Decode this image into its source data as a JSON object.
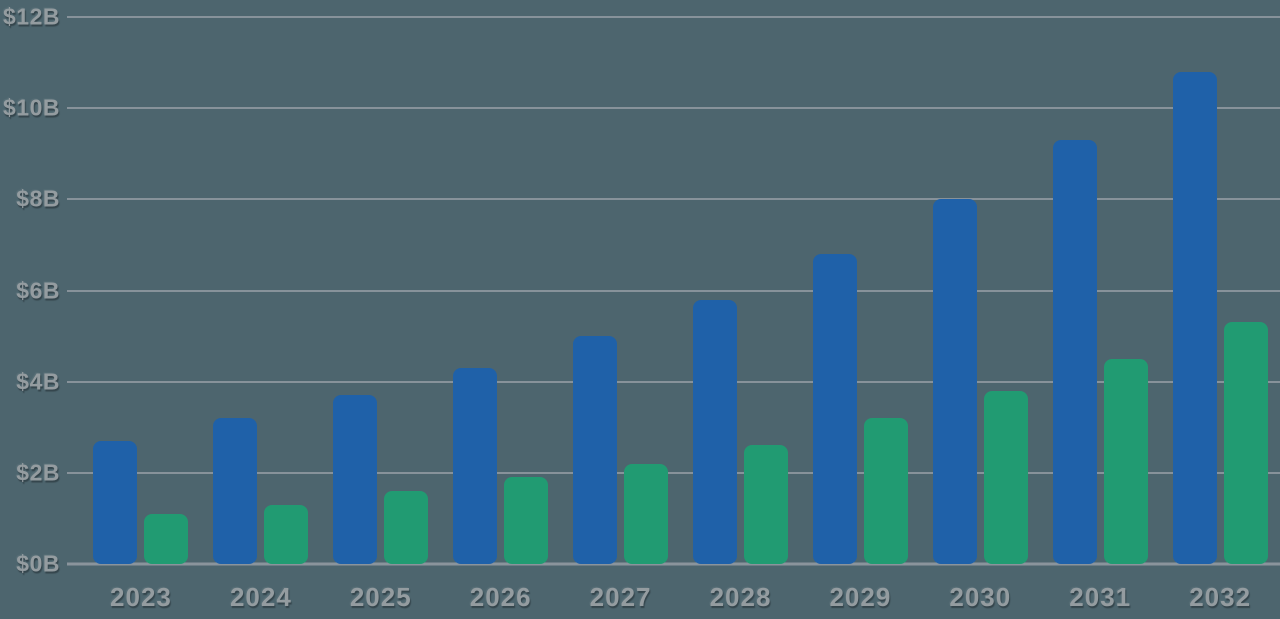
{
  "chart_data": {
    "type": "bar",
    "categories": [
      "2023",
      "2024",
      "2025",
      "2026",
      "2027",
      "2028",
      "2029",
      "2030",
      "2031",
      "2032"
    ],
    "series": [
      {
        "name": "series-1-blue",
        "color": "#1f61a9",
        "values": [
          2.7,
          3.2,
          3.7,
          4.3,
          5.0,
          5.8,
          6.8,
          8.0,
          9.3,
          10.8
        ]
      },
      {
        "name": "series-2-green",
        "color": "#219b72",
        "values": [
          1.1,
          1.3,
          1.6,
          1.9,
          2.2,
          2.6,
          3.2,
          3.8,
          4.5,
          5.3
        ]
      }
    ],
    "ylim": [
      0,
      12
    ],
    "y_ticks": [
      {
        "value": 0,
        "label": "$0B"
      },
      {
        "value": 2,
        "label": "$2B"
      },
      {
        "value": 4,
        "label": "$4B"
      },
      {
        "value": 6,
        "label": "$6B"
      },
      {
        "value": 8,
        "label": "$8B"
      },
      {
        "value": 10,
        "label": "$10B"
      },
      {
        "value": 12,
        "label": "$12B"
      }
    ],
    "legend": "none",
    "grid": true
  },
  "style": {
    "background": "#4d656e",
    "gridline_color": "#87929a",
    "label_color": "#949CA0"
  }
}
